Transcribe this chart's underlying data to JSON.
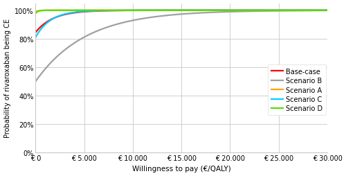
{
  "xlabel": "Willingness to pay (€/QALY)",
  "ylabel": "Probability of rivaroxaban being CE",
  "xlim": [
    0,
    30000
  ],
  "ylim": [
    0,
    1.05
  ],
  "xticks": [
    0,
    5000,
    10000,
    15000,
    20000,
    25000,
    30000
  ],
  "yticks": [
    0,
    0.2,
    0.4,
    0.6,
    0.8,
    1.0
  ],
  "lines": [
    {
      "label": "Base-case",
      "color": "#FF0000",
      "start_y": 0.845,
      "k": 0.00055,
      "max_y": 1.0
    },
    {
      "label": "Scenario B",
      "color": "#A0A0A0",
      "start_y": 0.5,
      "k": 0.000195,
      "max_y": 1.0
    },
    {
      "label": "Scenario A",
      "color": "#FFA500",
      "start_y": 0.99,
      "k": 0.003,
      "max_y": 1.0
    },
    {
      "label": "Scenario C",
      "color": "#00CFFF",
      "start_y": 0.81,
      "k": 0.00065,
      "max_y": 1.0
    },
    {
      "label": "Scenario D",
      "color": "#55DD00",
      "start_y": 0.978,
      "k": 0.004,
      "max_y": 1.0
    }
  ],
  "legend_order": [
    "Base-case",
    "Scenario B",
    "Scenario A",
    "Scenario C",
    "Scenario D"
  ],
  "background_color": "#FFFFFF",
  "grid_color": "#C8C8C8"
}
